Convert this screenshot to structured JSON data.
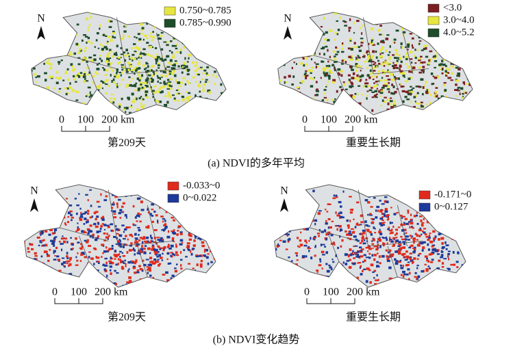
{
  "north": "N",
  "scale_bar": {
    "start": "0",
    "mid": "100",
    "end": "200 km"
  },
  "panels": [
    {
      "caption": "(a) NDVI的多年平均",
      "maps": [
        {
          "label": "第209天",
          "legend": [
            {
              "label": "0.750~0.785",
              "color": "#e6e640"
            },
            {
              "label": "0.785~0.990",
              "color": "#1d4d2a"
            }
          ]
        },
        {
          "label": "重要生长期",
          "legend": [
            {
              "label": "<3.0",
              "color": "#7a1f23"
            },
            {
              "label": "3.0~4.0",
              "color": "#e6e640"
            },
            {
              "label": "4.0~5.2",
              "color": "#1d4d2a"
            }
          ]
        }
      ]
    },
    {
      "caption": "(b) NDVI变化趋势",
      "maps": [
        {
          "label": "第209天",
          "legend": [
            {
              "label": "-0.033~0",
              "color": "#e02a1c"
            },
            {
              "label": "0~0.022",
              "color": "#1c3a9a"
            }
          ]
        },
        {
          "label": "重要生长期",
          "legend": [
            {
              "label": "-0.171~0",
              "color": "#e02a1c"
            },
            {
              "label": "0~0.127",
              "color": "#1c3a9a"
            }
          ]
        }
      ]
    }
  ]
}
